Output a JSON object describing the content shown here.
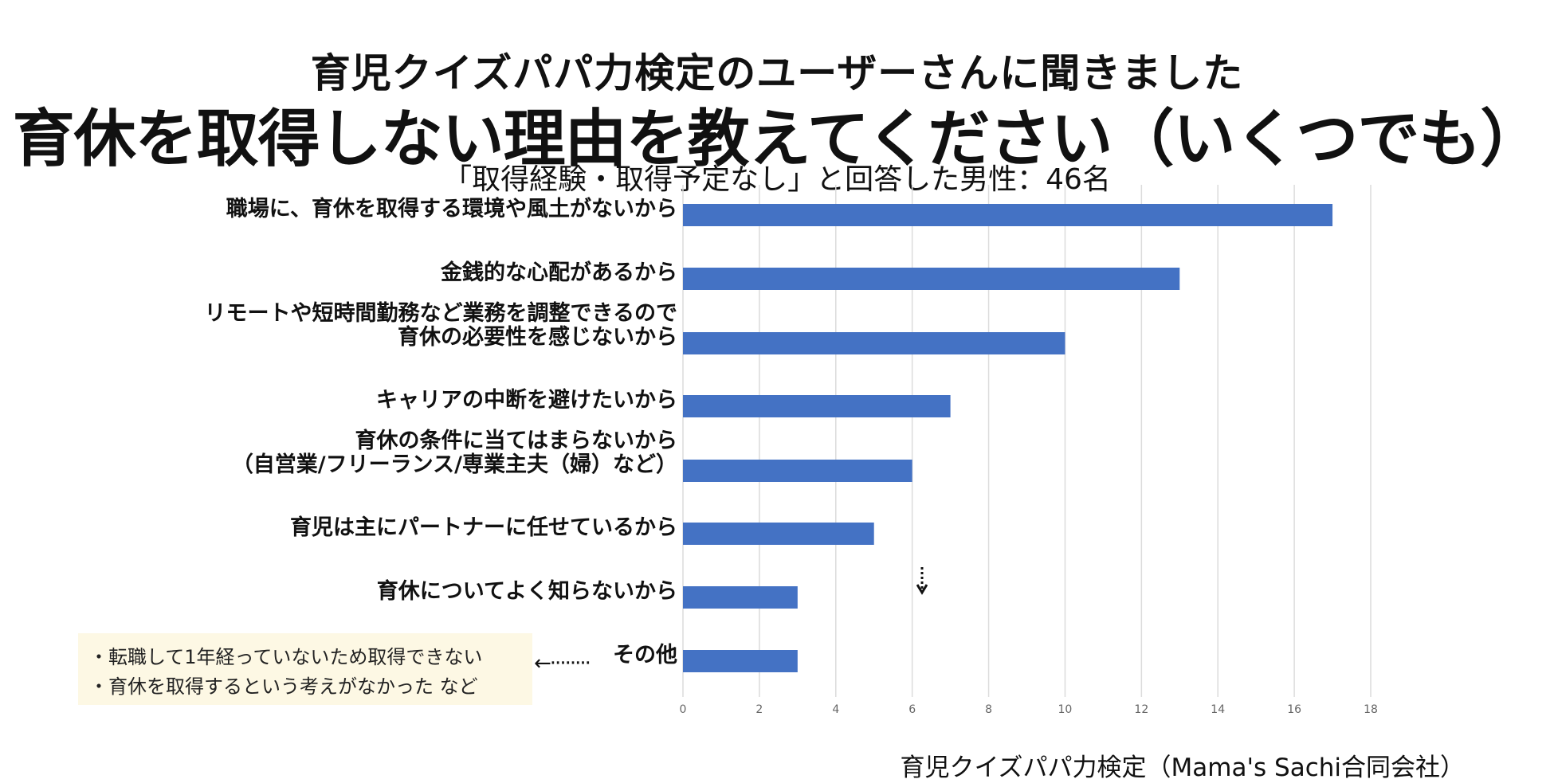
{
  "header": {
    "supertitle": "育児クイズパパ力検定のユーザーさんに聞きました",
    "title": "育休を取得しない理由を教えてください（いくつでも）",
    "subtitle": "「取得経験・取得予定なし」と回答した男性：46名"
  },
  "chart_data": {
    "type": "bar",
    "orientation": "horizontal",
    "title": "育休を取得しない理由を教えてください（いくつでも）",
    "categories": [
      [
        "職場に、育休を取得する環境や風土がないから"
      ],
      [
        "金銭的な心配があるから"
      ],
      [
        "リモートや短時間勤務など業務を調整できるので",
        "育休の必要性を感じないから"
      ],
      [
        "キャリアの中断を避けたいから"
      ],
      [
        "育休の条件に当てはまらないから",
        "（自営業/フリーランス/専業主夫（婦）など）"
      ],
      [
        "育児は主にパートナーに任せているから"
      ],
      [
        "育休についてよく知らないから"
      ],
      [
        "その他"
      ]
    ],
    "values": [
      17,
      13,
      10,
      7,
      6,
      5,
      3,
      3
    ],
    "xlim": [
      0,
      18
    ],
    "xticks": [
      "0",
      "2",
      "4",
      "6",
      "8",
      "10",
      "12",
      "14",
      "16",
      "18"
    ],
    "grid": true,
    "bar_color": "#4472c4",
    "grid_color": "#dcdcdc"
  },
  "notes": {
    "line1": "・転職して1年経っていないため取得できない",
    "line2": "・育休を取得するという考えがなかった など",
    "arrow": "←········"
  },
  "footer": {
    "source": "育児クイズパパ力検定（Mama's Sachi合同会社）"
  }
}
